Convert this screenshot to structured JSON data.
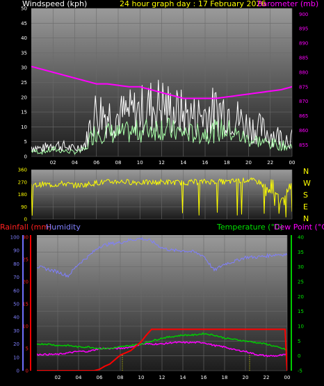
{
  "header": {
    "wind_title": "Windspeed (kph)",
    "date_title": "24 hour graph day : 17 February 2026",
    "baro_title": "Barometer (mb)"
  },
  "lower_header": {
    "rain_title": "Rainfall (mm)",
    "humidity_title": "Humidity",
    "temp_title": "Temperature (°C)",
    "dew_title": "Dew Point (°C)"
  },
  "compass": [
    "N",
    "W",
    "S",
    "E",
    "N"
  ],
  "colors": {
    "wind_gust": "#ffffff",
    "wind_avg": "#a8ffa8",
    "barometer": "#ff00ff",
    "direction": "#ffff00",
    "humidity": "#7f7fff",
    "temperature": "#00cc00",
    "dew_point": "#ff00ff",
    "rainfall": "#ff0000"
  },
  "chart_data": [
    {
      "type": "line",
      "x_ticks": [
        "02",
        "04",
        "06",
        "08",
        "10",
        "12",
        "14",
        "16",
        "18",
        "20",
        "22",
        "00"
      ],
      "left_axis": {
        "ticks": [
          0,
          5,
          10,
          15,
          20,
          25,
          30,
          35,
          40,
          45,
          50
        ],
        "range": [
          0,
          50
        ]
      },
      "right_axis": {
        "ticks": [
          855,
          860,
          865,
          870,
          875,
          880,
          885,
          890,
          895,
          900
        ],
        "range": [
          851,
          902
        ]
      },
      "grid": true,
      "series": [
        {
          "name": "Windspeed",
          "x": [
            0,
            1,
            2,
            3,
            4,
            5,
            5.5,
            6,
            7,
            8,
            9,
            10,
            11,
            12,
            13,
            14,
            15,
            16,
            17,
            18,
            19,
            20,
            21,
            22,
            23,
            24
          ],
          "values": [
            4,
            3,
            5,
            4,
            3,
            5,
            14,
            18,
            17,
            16,
            17,
            18,
            20,
            21,
            18,
            17,
            16,
            17,
            18,
            19,
            15,
            12,
            11,
            9,
            8,
            7
          ]
        },
        {
          "name": "Barometer",
          "x": [
            0,
            1,
            2,
            3,
            4,
            5,
            6,
            7,
            8,
            9,
            10,
            11,
            12,
            13,
            14,
            15,
            16,
            17,
            18,
            19,
            20,
            21,
            22,
            23,
            24
          ],
          "values": [
            882,
            881,
            880,
            879,
            878,
            877,
            876,
            876,
            875.5,
            875,
            875,
            874,
            873,
            872,
            871,
            871,
            871,
            871,
            871.5,
            872,
            872.5,
            873,
            873.5,
            874,
            875
          ]
        }
      ]
    },
    {
      "type": "line",
      "x_ticks": [
        "02",
        "04",
        "06",
        "08",
        "10",
        "12",
        "14",
        "16",
        "18",
        "20",
        "22",
        "00"
      ],
      "left_axis": {
        "ticks": [
          0,
          90,
          180,
          270,
          360
        ],
        "range": [
          0,
          360
        ]
      },
      "grid": true,
      "series": [
        {
          "name": "Wind direction",
          "x": [
            0,
            1,
            2,
            3,
            4,
            5,
            6,
            7,
            8,
            9,
            10,
            11,
            12,
            13,
            14,
            15,
            16,
            17,
            18,
            19,
            20,
            21,
            22,
            23,
            24
          ],
          "values": [
            240,
            255,
            250,
            260,
            245,
            250,
            265,
            270,
            275,
            270,
            268,
            265,
            270,
            268,
            265,
            270,
            272,
            275,
            270,
            280,
            285,
            270,
            200,
            150,
            250
          ]
        }
      ]
    },
    {
      "type": "line",
      "x_ticks": [
        "02",
        "04",
        "06",
        "08",
        "10",
        "12",
        "14",
        "16",
        "18",
        "20",
        "22",
        "00"
      ],
      "humidity_axis": {
        "ticks": [
          0,
          10,
          20,
          30,
          40,
          50,
          60,
          70,
          80,
          90,
          100
        ],
        "range": [
          0,
          100
        ]
      },
      "rain_axis": {
        "ticks": [
          0,
          5,
          10,
          15,
          20,
          25,
          30
        ],
        "range": [
          0,
          30
        ]
      },
      "temp_axis": {
        "ticks": [
          -5,
          0,
          5,
          10,
          15,
          20,
          25,
          30,
          35,
          40
        ],
        "range": [
          -5,
          40
        ]
      },
      "grid": true,
      "series": [
        {
          "name": "Humidity",
          "x": [
            0,
            1,
            2,
            3,
            4,
            5,
            6,
            7,
            8,
            9,
            10,
            11,
            12,
            13,
            14,
            15,
            16,
            17,
            18,
            19,
            20,
            21,
            22,
            23,
            24
          ],
          "values": [
            78,
            76,
            74,
            71,
            80,
            86,
            93,
            95,
            96,
            98,
            99,
            97,
            92,
            90,
            90,
            89,
            86,
            75,
            80,
            82,
            85,
            85,
            86,
            87,
            87
          ]
        },
        {
          "name": "Temperature",
          "x": [
            0,
            1,
            2,
            3,
            4,
            5,
            6,
            7,
            8,
            9,
            10,
            11,
            12,
            13,
            14,
            15,
            16,
            17,
            18,
            19,
            20,
            21,
            22,
            23,
            24
          ],
          "values": [
            4,
            4,
            3.5,
            3.5,
            3,
            3,
            2.5,
            2.5,
            3,
            3.5,
            4,
            5,
            6,
            6.5,
            7,
            7,
            7.5,
            7,
            6,
            5.5,
            5,
            4.5,
            4,
            3,
            2
          ]
        },
        {
          "name": "Dew Point",
          "x": [
            0,
            1,
            2,
            3,
            4,
            5,
            6,
            7,
            8,
            9,
            10,
            11,
            12,
            13,
            14,
            15,
            16,
            17,
            18,
            19,
            20,
            21,
            22,
            23,
            24
          ],
          "values": [
            0.5,
            0.5,
            0.5,
            1,
            1.5,
            1.5,
            2.5,
            2.5,
            2.5,
            3,
            4,
            4,
            4,
            4.5,
            4.5,
            4.5,
            4.5,
            3.5,
            3,
            2,
            1.5,
            0.5,
            0,
            0,
            0.5
          ]
        },
        {
          "name": "Rainfall",
          "x": [
            0,
            5.5,
            6,
            6.5,
            7,
            7.5,
            8,
            8.5,
            9,
            9.5,
            10,
            10.5,
            11,
            12,
            14,
            16,
            18,
            20,
            22,
            23.8,
            24
          ],
          "values": [
            0,
            0,
            0.3,
            1,
            1.5,
            2.5,
            3.5,
            4,
            4.5,
            5.5,
            6.5,
            8,
            9.3,
            9.3,
            9.3,
            9.3,
            9.3,
            9.3,
            9.3,
            9.3,
            0
          ]
        }
      ]
    }
  ]
}
